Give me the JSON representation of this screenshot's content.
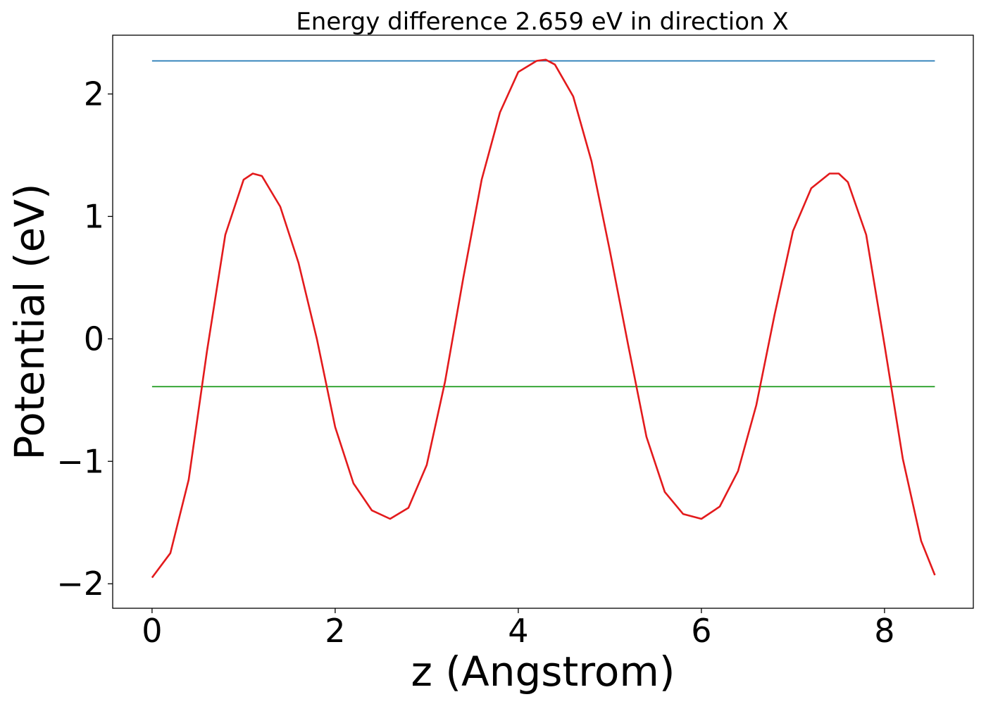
{
  "chart_data": {
    "type": "line",
    "title": "Energy difference 2.659 eV in direction X",
    "xlabel": "z (Angstrom)",
    "ylabel": "Potential (eV)",
    "xlim": [
      -0.43,
      8.97
    ],
    "ylim": [
      -2.2,
      2.48
    ],
    "xticks": [
      0,
      2,
      4,
      6,
      8
    ],
    "xtick_labels": [
      "0",
      "2",
      "4",
      "6",
      "8"
    ],
    "yticks": [
      -2,
      -1,
      0,
      1,
      2
    ],
    "ytick_labels": [
      "−2",
      "−1",
      "0",
      "1",
      "2"
    ],
    "grid": false,
    "series": [
      {
        "color": "#1f77b4",
        "x": [
          0,
          8.55
        ],
        "y": [
          2.27,
          2.27
        ]
      },
      {
        "color": "#2ca02c",
        "x": [
          0,
          8.55
        ],
        "y": [
          -0.39,
          -0.39
        ]
      },
      {
        "color": "#e31a1c",
        "x": [
          0.0,
          0.2,
          0.4,
          0.6,
          0.8,
          1.0,
          1.1,
          1.2,
          1.4,
          1.6,
          1.8,
          2.0,
          2.2,
          2.4,
          2.6,
          2.8,
          3.0,
          3.2,
          3.4,
          3.6,
          3.8,
          4.0,
          4.2,
          4.3,
          4.4,
          4.6,
          4.8,
          5.0,
          5.2,
          5.4,
          5.6,
          5.8,
          6.0,
          6.2,
          6.4,
          6.6,
          6.8,
          7.0,
          7.2,
          7.4,
          7.5,
          7.6,
          7.8,
          8.0,
          8.2,
          8.4,
          8.55
        ],
        "y": [
          -1.95,
          -1.75,
          -1.15,
          -0.1,
          0.85,
          1.3,
          1.35,
          1.33,
          1.08,
          0.62,
          0.0,
          -0.72,
          -1.18,
          -1.4,
          -1.47,
          -1.38,
          -1.03,
          -0.35,
          0.5,
          1.3,
          1.85,
          2.18,
          2.27,
          2.28,
          2.24,
          1.98,
          1.45,
          0.72,
          -0.05,
          -0.8,
          -1.25,
          -1.43,
          -1.47,
          -1.37,
          -1.08,
          -0.54,
          0.2,
          0.88,
          1.23,
          1.35,
          1.35,
          1.28,
          0.85,
          -0.05,
          -0.98,
          -1.65,
          -1.93
        ]
      }
    ]
  }
}
